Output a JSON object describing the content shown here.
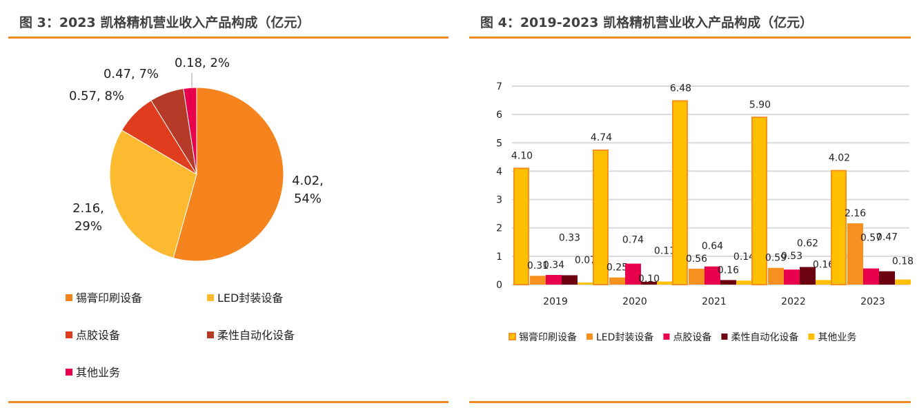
{
  "titles": {
    "left": "图 3：2023 凯格精机营业收入产品构成（亿元）",
    "right": "图 4：2019-2023 凯格精机营业收入产品构成（亿元）"
  },
  "chart_data": [
    {
      "type": "pie",
      "title": "",
      "slices": [
        {
          "name": "锡膏印刷设备",
          "value": 4.02,
          "percent": "54%",
          "label": "4.02, 54%",
          "color": "#F5841F"
        },
        {
          "name": "LED封装设备",
          "value": 2.16,
          "percent": "29%",
          "label": "2.16, 29%",
          "color": "#FBBA2F"
        },
        {
          "name": "点胶设备",
          "value": 0.57,
          "percent": "8%",
          "label": "0.57, 8%",
          "color": "#E03C1E"
        },
        {
          "name": "柔性自动化设备",
          "value": 0.47,
          "percent": "7%",
          "label": "0.47, 7%",
          "color": "#B53A28"
        },
        {
          "name": "其他业务",
          "value": 0.18,
          "percent": "2%",
          "label": "0.18, 2%",
          "color": "#E8004C"
        }
      ],
      "legend": "bottom"
    },
    {
      "type": "bar",
      "title": "",
      "categories": [
        "2019",
        "2020",
        "2021",
        "2022",
        "2023"
      ],
      "ylim": [
        0,
        7
      ],
      "yticks": [
        0,
        1,
        2,
        3,
        4,
        5,
        6,
        7
      ],
      "grid": true,
      "legend": "bottom",
      "series": [
        {
          "name": "锡膏印刷设备",
          "color": "#FFC000",
          "border": "#F7901E",
          "values": [
            4.1,
            4.74,
            6.48,
            5.9,
            4.02
          ],
          "labels": [
            "4.10",
            "4.74",
            "6.48",
            "5.90",
            "4.02"
          ]
        },
        {
          "name": "LED封装设备",
          "color": "#F7901E",
          "values": [
            0.31,
            0.25,
            0.56,
            0.59,
            2.16
          ],
          "labels": [
            "0.31",
            "0.25",
            "0.56",
            "0.59",
            "2.16"
          ]
        },
        {
          "name": "点胶设备",
          "color": "#E8004C",
          "values": [
            0.34,
            0.74,
            0.64,
            0.53,
            0.57
          ],
          "labels": [
            "0.34",
            "0.74",
            "0.64",
            "0.53",
            "0.57"
          ]
        },
        {
          "name": "柔性自动化设备",
          "color": "#6B0010",
          "values": [
            0.33,
            0.1,
            0.16,
            0.62,
            0.47
          ],
          "labels": [
            "0.33",
            "0.10",
            "0.16",
            "0.62",
            "0.47"
          ]
        },
        {
          "name": "其他业务",
          "color": "#FFC000",
          "values": [
            0.07,
            0.11,
            0.14,
            0.16,
            0.18
          ],
          "labels": [
            "0.07",
            "0.11",
            "0.14",
            "0.16",
            "0.18"
          ]
        }
      ]
    }
  ]
}
